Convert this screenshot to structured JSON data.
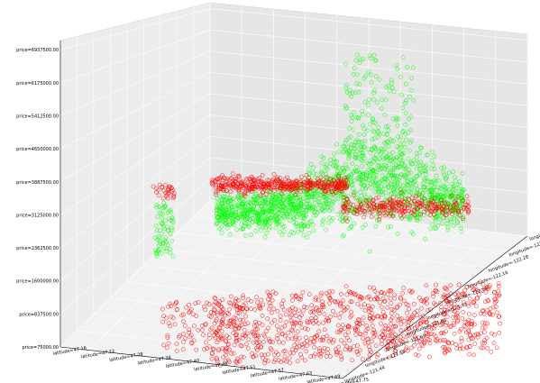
{
  "chart_data": {
    "type": "scatter",
    "title": "",
    "zlabel_prefix": "price=",
    "xlabel_prefix": "latitude=",
    "ylabel_prefix": "longitude=",
    "z_ticks": [
      "75000.00",
      "837500.00",
      "1600000.00",
      "2362500.00",
      "3125000.00",
      "3887500.00",
      "4650000.00",
      "5412500.00",
      "6175000.00",
      "6937500.00"
    ],
    "x_ticks": [
      "47.16",
      "47.22",
      "47.28",
      "47.34",
      "47.40",
      "47.46",
      "47.51",
      "47.57",
      "47.63",
      "47.69",
      "47.75"
    ],
    "y_ticks": [
      "-121.44",
      "-121.56",
      "-121.68",
      "-121.80",
      "-121.92",
      "-122.04",
      "-122.16",
      "-122.28",
      "-122.40",
      "-122.52"
    ],
    "zlim": [
      75000,
      6937500
    ],
    "xlim": [
      47.16,
      47.75
    ],
    "ylim": [
      -121.44,
      -122.52
    ],
    "grid": true,
    "series": [
      {
        "color": "#00ff00",
        "marker": "open-circle"
      },
      {
        "color": "#ff0000",
        "marker": "open-circle"
      }
    ]
  }
}
